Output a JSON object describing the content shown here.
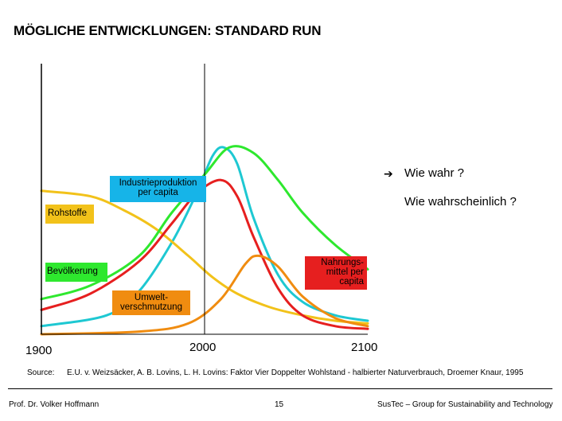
{
  "page": {
    "title": "MÖGLICHE ENTWICKLUNGEN: STANDARD RUN"
  },
  "chart_data": {
    "type": "line",
    "title": "MÖGLICHE ENTWICKLUNGEN: STANDARD RUN",
    "x_range": [
      1900,
      2100
    ],
    "y_range": [
      0,
      1
    ],
    "x_tick_labels": [
      "1900",
      "2000",
      "2100"
    ],
    "reference_year": 2000,
    "series": [
      {
        "name": "Industrieproduktion per capita",
        "color": "#1ec8d2",
        "x": [
          1900,
          1940,
          1960,
          1980,
          1995,
          2005,
          2012,
          2020,
          2030,
          2045,
          2060,
          2080,
          2100
        ],
        "y": [
          0.03,
          0.07,
          0.16,
          0.34,
          0.52,
          0.66,
          0.69,
          0.63,
          0.43,
          0.22,
          0.12,
          0.07,
          0.05
        ]
      },
      {
        "name": "Rohstoffe",
        "color": "#f2c21a",
        "x": [
          1900,
          1930,
          1950,
          1970,
          1990,
          2005,
          2020,
          2040,
          2060,
          2080,
          2100
        ],
        "y": [
          0.53,
          0.51,
          0.46,
          0.39,
          0.29,
          0.21,
          0.15,
          0.1,
          0.07,
          0.05,
          0.04
        ]
      },
      {
        "name": "Bevölkerung",
        "color": "#2ee82e",
        "x": [
          1900,
          1930,
          1960,
          1980,
          2000,
          2015,
          2030,
          2045,
          2060,
          2080,
          2100
        ],
        "y": [
          0.13,
          0.18,
          0.29,
          0.45,
          0.59,
          0.69,
          0.67,
          0.57,
          0.45,
          0.33,
          0.24
        ]
      },
      {
        "name": "Nahrungsmittel per capita",
        "color": "#e61f1f",
        "x": [
          1900,
          1930,
          1960,
          1980,
          1995,
          2010,
          2020,
          2030,
          2045,
          2060,
          2080,
          2100
        ],
        "y": [
          0.09,
          0.15,
          0.27,
          0.41,
          0.52,
          0.57,
          0.51,
          0.36,
          0.17,
          0.07,
          0.03,
          0.02
        ]
      },
      {
        "name": "Umweltverschmutzung",
        "color": "#f08c10",
        "x": [
          1900,
          1960,
          1990,
          2010,
          2025,
          2033,
          2045,
          2060,
          2080,
          2100
        ],
        "y": [
          0.0,
          0.01,
          0.04,
          0.13,
          0.26,
          0.29,
          0.25,
          0.14,
          0.06,
          0.03
        ]
      }
    ],
    "annotations": [
      "Wie wahr ?",
      "Wie wahrscheinlich ?"
    ]
  },
  "labels": {
    "industrie": [
      "Industrieproduktion",
      "per capita"
    ],
    "rohstoffe": "Rohstoffe",
    "bevoelkerung": "Bevölkerung",
    "nahrung": [
      "Nahrungs-",
      "mittel per",
      "capita"
    ],
    "umwelt": [
      "Umwelt-",
      "verschmutzung"
    ]
  },
  "source": {
    "label": "Source:",
    "text": "E.U. v. Weizsäcker, A. B. Lovins, L. H. Lovins: Faktor Vier Doppelter Wohlstand - halbierter Naturverbrauch, Droemer Knaur, 1995"
  },
  "footer": {
    "author": "Prof. Dr. Volker Hoffmann",
    "page_number": "15",
    "org": "SusTec – Group for Sustainability and Technology"
  },
  "colors": {
    "axis": "#000000",
    "arrow": "#000000"
  }
}
